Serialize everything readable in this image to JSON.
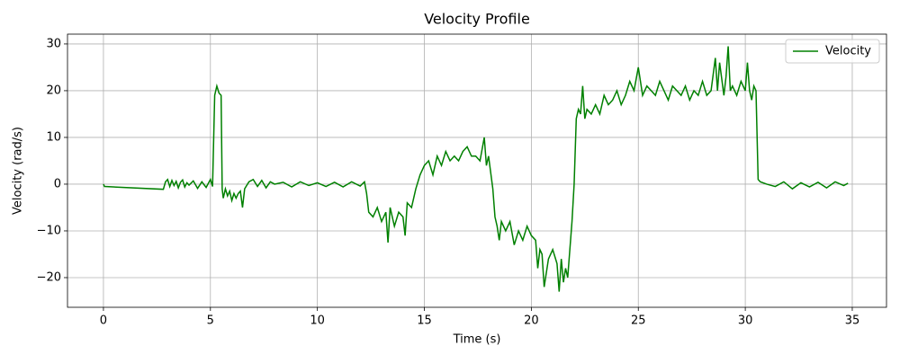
{
  "chart_data": {
    "type": "line",
    "title": "Velocity Profile",
    "x_label": "Time (s)",
    "y_label": "Velocity (rad/s)",
    "x": [
      0,
      0.05,
      2.8,
      2.9,
      3.0,
      3.1,
      3.2,
      3.3,
      3.4,
      3.5,
      3.6,
      3.7,
      3.8,
      3.9,
      4.0,
      4.2,
      4.4,
      4.6,
      4.8,
      5.0,
      5.1,
      5.2,
      5.3,
      5.4,
      5.5,
      5.55,
      5.6,
      5.7,
      5.8,
      5.9,
      6.0,
      6.1,
      6.2,
      6.3,
      6.4,
      6.5,
      6.6,
      6.8,
      7.0,
      7.2,
      7.4,
      7.6,
      7.8,
      8.0,
      8.4,
      8.8,
      9.2,
      9.6,
      10.0,
      10.4,
      10.8,
      11.2,
      11.6,
      12.0,
      12.2,
      12.3,
      12.4,
      12.6,
      12.8,
      13.0,
      13.2,
      13.3,
      13.4,
      13.6,
      13.8,
      14.0,
      14.1,
      14.2,
      14.4,
      14.6,
      14.8,
      15.0,
      15.2,
      15.4,
      15.6,
      15.8,
      16.0,
      16.2,
      16.4,
      16.6,
      16.8,
      17.0,
      17.2,
      17.4,
      17.6,
      17.8,
      17.9,
      18.0,
      18.2,
      18.3,
      18.4,
      18.5,
      18.6,
      18.8,
      19.0,
      19.2,
      19.4,
      19.6,
      19.8,
      20.0,
      20.2,
      20.3,
      20.4,
      20.5,
      20.6,
      20.8,
      21.0,
      21.2,
      21.3,
      21.4,
      21.5,
      21.6,
      21.7,
      21.8,
      21.9,
      22.0,
      22.1,
      22.2,
      22.3,
      22.4,
      22.5,
      22.6,
      22.8,
      23.0,
      23.2,
      23.4,
      23.6,
      23.8,
      24.0,
      24.2,
      24.4,
      24.6,
      24.8,
      25.0,
      25.2,
      25.4,
      25.6,
      25.8,
      26.0,
      26.2,
      26.4,
      26.6,
      26.8,
      27.0,
      27.2,
      27.4,
      27.6,
      27.8,
      28.0,
      28.2,
      28.4,
      28.6,
      28.7,
      28.8,
      29.0,
      29.1,
      29.2,
      29.3,
      29.4,
      29.6,
      29.8,
      30.0,
      30.1,
      30.2,
      30.3,
      30.4,
      30.5,
      30.6,
      30.7,
      31.0,
      31.4,
      31.8,
      32.2,
      32.6,
      33.0,
      33.4,
      33.8,
      34.2,
      34.6,
      34.8
    ],
    "series": [
      {
        "name": "Velocity",
        "color": "#008000",
        "values": [
          0,
          -0.5,
          -1.1,
          0.5,
          1,
          -0.5,
          0.8,
          -0.3,
          0.6,
          -0.8,
          0.4,
          0.9,
          -0.6,
          0.3,
          -0.2,
          0.7,
          -0.9,
          0.5,
          -0.7,
          1,
          -0.5,
          19,
          21,
          19.5,
          19,
          -1,
          -3,
          -1,
          -2.5,
          -1.5,
          -3.5,
          -2,
          -3,
          -2,
          -1.5,
          -5,
          -1,
          0.5,
          1,
          -0.5,
          0.8,
          -0.8,
          0.5,
          0,
          0.4,
          -0.6,
          0.5,
          -0.3,
          0.3,
          -0.5,
          0.4,
          -0.6,
          0.5,
          -0.4,
          0.5,
          -2,
          -6,
          -7,
          -5,
          -8,
          -6,
          -12.5,
          -5,
          -9,
          -6,
          -7,
          -11,
          -4,
          -5,
          -1,
          2,
          4,
          5,
          2,
          6,
          4,
          7,
          5,
          6,
          5,
          7,
          8,
          6,
          6,
          5,
          10,
          4,
          6,
          -1,
          -7,
          -9,
          -12,
          -8,
          -10,
          -8,
          -13,
          -10,
          -12,
          -9,
          -11,
          -12,
          -18,
          -14,
          -15,
          -22,
          -16,
          -14,
          -17,
          -23,
          -16,
          -21,
          -18,
          -20,
          -14,
          -8,
          0,
          14,
          16,
          15,
          21,
          14,
          16,
          15,
          17,
          15,
          19,
          17,
          18,
          20,
          17,
          19,
          22,
          20,
          25,
          19,
          21,
          20,
          19,
          22,
          20,
          18,
          21,
          20,
          19,
          21,
          18,
          20,
          19,
          22,
          19,
          20,
          27,
          20,
          26,
          19,
          23,
          29.5,
          20,
          21,
          19,
          22,
          20,
          26,
          20,
          18,
          21,
          20,
          1,
          0.5,
          0,
          -0.5,
          0.5,
          -1,
          0.3,
          -0.6,
          0.4,
          -0.8,
          0.5,
          -0.3,
          0.2
        ]
      }
    ],
    "xlim": [
      -1.68,
      36.6
    ],
    "ylim": [
      -26.35,
      32.1
    ],
    "xticks": [
      0,
      5,
      10,
      15,
      20,
      25,
      30,
      35
    ],
    "yticks": [
      {
        "value": -20,
        "label": "−20"
      },
      {
        "value": -10,
        "label": "−10"
      },
      0,
      10,
      20,
      30
    ],
    "grid": true,
    "legend": "upper right"
  }
}
